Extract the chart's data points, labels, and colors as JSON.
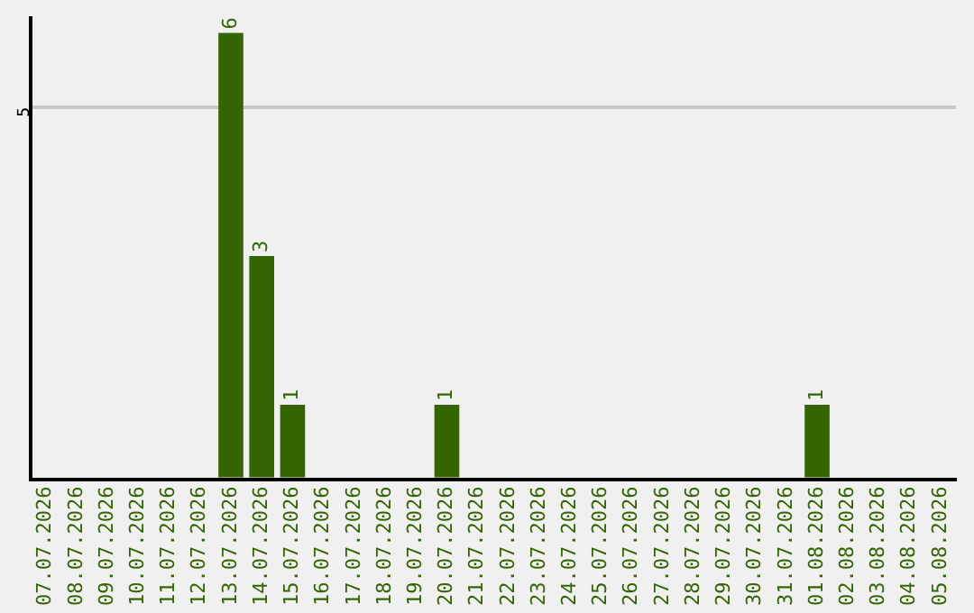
{
  "chart_data": {
    "type": "bar",
    "categories": [
      "07.07.2026",
      "08.07.2026",
      "09.07.2026",
      "10.07.2026",
      "11.07.2026",
      "12.07.2026",
      "13.07.2026",
      "14.07.2026",
      "15.07.2026",
      "16.07.2026",
      "17.07.2026",
      "18.07.2026",
      "19.07.2026",
      "20.07.2026",
      "21.07.2026",
      "22.07.2026",
      "23.07.2026",
      "24.07.2026",
      "25.07.2026",
      "26.07.2026",
      "27.07.2026",
      "28.07.2026",
      "29.07.2026",
      "30.07.2026",
      "31.07.2026",
      "01.08.2026",
      "02.08.2026",
      "03.08.2026",
      "04.08.2026",
      "05.08.2026"
    ],
    "values": [
      0,
      0,
      0,
      0,
      0,
      0,
      6,
      3,
      1,
      0,
      0,
      0,
      0,
      1,
      0,
      0,
      0,
      0,
      0,
      0,
      0,
      0,
      0,
      0,
      0,
      1,
      0,
      0,
      0,
      0
    ],
    "value_labels": [
      null,
      null,
      null,
      null,
      null,
      null,
      "6",
      "3",
      "1",
      null,
      null,
      null,
      null,
      "1",
      null,
      null,
      null,
      null,
      null,
      null,
      null,
      null,
      null,
      null,
      null,
      "1",
      null,
      null,
      null,
      null
    ],
    "color": "#336600",
    "ylim": [
      0,
      6.2
    ],
    "yticks": [
      {
        "value": 0,
        "label": null
      },
      5
    ],
    "grid": "y",
    "legend": false
  }
}
